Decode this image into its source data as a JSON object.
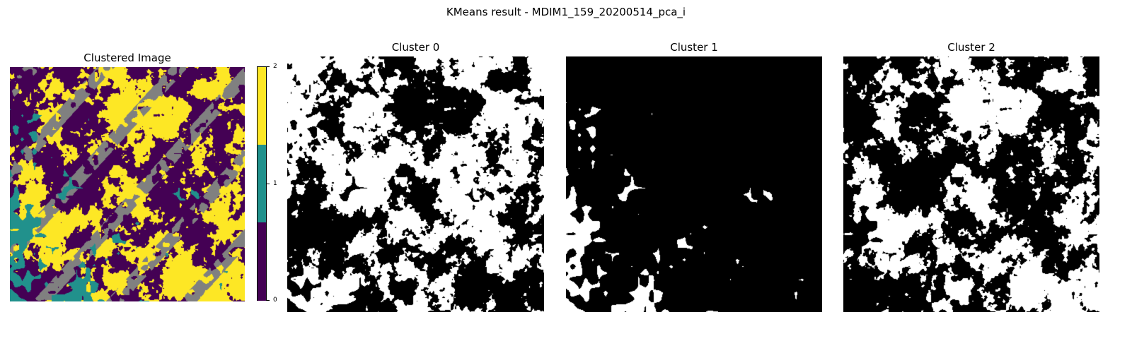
{
  "suptitle": "KMeans result - MDIM1_159_20200514_pca_i",
  "chart_data": [
    {
      "type": "heatmap",
      "title": "Clustered Image",
      "axes": "off",
      "colormap": "viridis (3 discrete levels)",
      "classes": [
        0,
        1,
        2
      ],
      "class_colors": [
        "#440154",
        "#21918c",
        "#fde725"
      ],
      "mask_color": "#808080",
      "colorbar": {
        "ticks": [
          "0",
          "1",
          "2"
        ],
        "range": [
          0,
          2
        ]
      }
    },
    {
      "type": "heatmap",
      "title": "Cluster 0",
      "axes": "off",
      "colors": [
        "#000000",
        "#ffffff"
      ],
      "approx_white_fraction": 0.55
    },
    {
      "type": "heatmap",
      "title": "Cluster 1",
      "axes": "off",
      "colors": [
        "#000000",
        "#ffffff"
      ],
      "approx_white_fraction": 0.04
    },
    {
      "type": "heatmap",
      "title": "Cluster 2",
      "axes": "off",
      "colors": [
        "#000000",
        "#ffffff"
      ],
      "approx_white_fraction": 0.5
    }
  ]
}
